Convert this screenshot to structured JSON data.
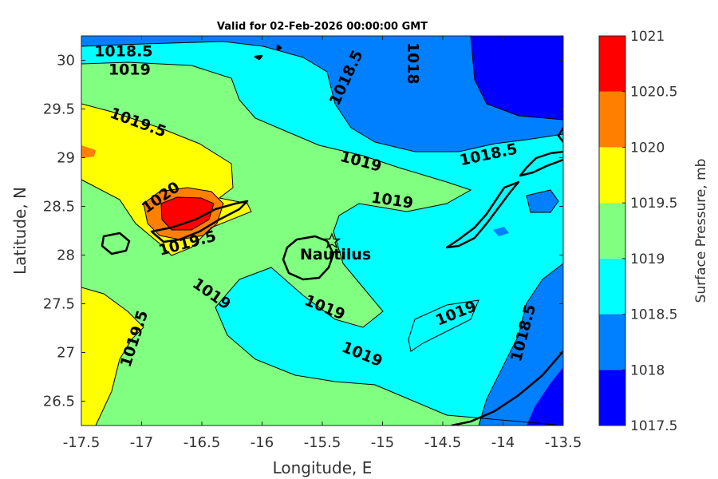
{
  "chart_data": {
    "type": "filled-contour",
    "title": "Valid for 02-Feb-2026 00:00:00 GMT",
    "xlabel": "Longitude, E",
    "ylabel": "Latitude, N",
    "xlim": [
      -17.5,
      -13.5
    ],
    "ylim": [
      26.25,
      30.25
    ],
    "x_ticks": [
      {
        "value": -17.5,
        "label": "-17.5"
      },
      {
        "value": -17,
        "label": "-17"
      },
      {
        "value": -16.5,
        "label": "-16.5"
      },
      {
        "value": -16,
        "label": "-16"
      },
      {
        "value": -15.5,
        "label": "-15.5"
      },
      {
        "value": -15,
        "label": "-15"
      },
      {
        "value": -14.5,
        "label": "-14.5"
      },
      {
        "value": -14,
        "label": "-14"
      },
      {
        "value": -13.5,
        "label": "-13.5"
      }
    ],
    "y_ticks": [
      {
        "value": 26.5,
        "label": "26.5"
      },
      {
        "value": 27,
        "label": "27"
      },
      {
        "value": 27.5,
        "label": "27.5"
      },
      {
        "value": 28,
        "label": "28"
      },
      {
        "value": 28.5,
        "label": "28.5"
      },
      {
        "value": 29,
        "label": "29"
      },
      {
        "value": 29.5,
        "label": "29.5"
      },
      {
        "value": 30,
        "label": "30"
      }
    ],
    "grid": false,
    "colorbar": {
      "label": "Surface Pressure, mb",
      "levels": [
        1017.5,
        1018,
        1018.5,
        1019,
        1019.5,
        1020,
        1020.5,
        1021
      ],
      "tick_labels": [
        "1017.5",
        "1018",
        "1018.5",
        "1019",
        "1019.5",
        "1020",
        "1020.5",
        "1021"
      ],
      "colors": [
        "#0000ff",
        "#0080ff",
        "#00ffff",
        "#80ff80",
        "#ffff00",
        "#ff8000",
        "#ff0000",
        "#800000"
      ]
    },
    "contour_labels": [
      {
        "text": "1018.5",
        "lon": -17.15,
        "lat": 30.09,
        "rotate": 0
      },
      {
        "text": "1019",
        "lon": -17.1,
        "lat": 29.9,
        "rotate": 0
      },
      {
        "text": "1019.5",
        "lon": -17.03,
        "lat": 29.36,
        "rotate": 20
      },
      {
        "text": "1018.5",
        "lon": -15.3,
        "lat": 29.82,
        "rotate": -65
      },
      {
        "text": "1018",
        "lon": -14.75,
        "lat": 29.97,
        "rotate": 90
      },
      {
        "text": "1019",
        "lon": -15.18,
        "lat": 28.96,
        "rotate": 15
      },
      {
        "text": "1018.5",
        "lon": -14.12,
        "lat": 29.03,
        "rotate": -12
      },
      {
        "text": "1019",
        "lon": -14.92,
        "lat": 28.56,
        "rotate": 8
      },
      {
        "text": "1020",
        "lon": -16.84,
        "lat": 28.59,
        "rotate": -35
      },
      {
        "text": "1019.5",
        "lon": -16.62,
        "lat": 28.12,
        "rotate": -15
      },
      {
        "text": "1019",
        "lon": -16.42,
        "lat": 27.6,
        "rotate": 35
      },
      {
        "text": "1019",
        "lon": -15.48,
        "lat": 27.46,
        "rotate": 22
      },
      {
        "text": "1019",
        "lon": -14.39,
        "lat": 27.4,
        "rotate": -22
      },
      {
        "text": "1018.5",
        "lon": -13.83,
        "lat": 27.2,
        "rotate": -75
      },
      {
        "text": "1019.5",
        "lon": -17.06,
        "lat": 27.14,
        "rotate": -72
      },
      {
        "text": "1019",
        "lon": -15.17,
        "lat": 26.98,
        "rotate": 22
      }
    ],
    "station": {
      "name": "Nautilus",
      "lon": -15.42,
      "lat": 28.14
    }
  }
}
